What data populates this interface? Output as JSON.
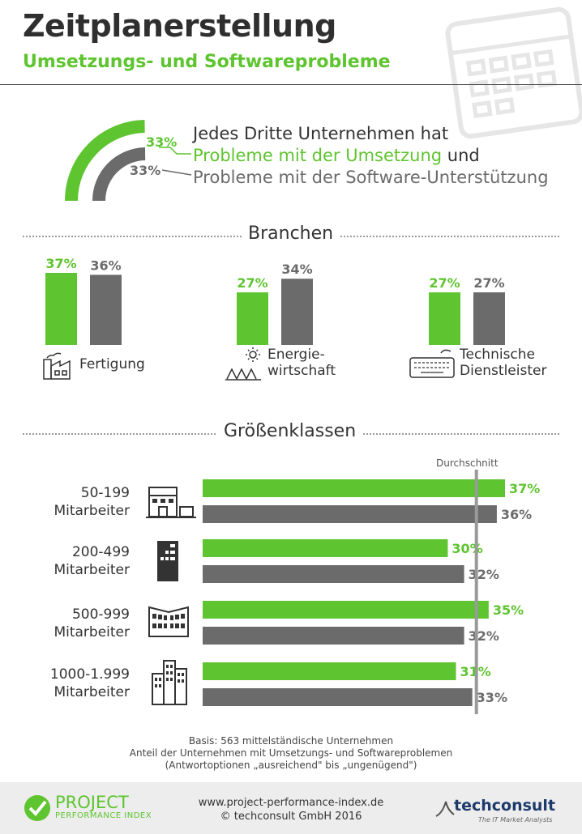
{
  "header": {
    "title": "Zeitplanerstellung",
    "subtitle": "Umsetzungs- und Softwareprobleme"
  },
  "intro": {
    "pct_green": "33%",
    "pct_grey": "33%",
    "line1": "Jedes Dritte Unternehmen hat",
    "line2_green": "Probleme mit der Umsetzung",
    "line2_tail": "und",
    "line3": "Probleme mit der Software-Unterstützung"
  },
  "branchen": {
    "heading": "Branchen",
    "items": [
      {
        "label_1": "Fertigung",
        "label_2": "",
        "icon": "factory-icon"
      },
      {
        "label_1": "Energie-",
        "label_2": "wirtschaft",
        "icon": "solar-panel-icon"
      },
      {
        "label_1": "Technische",
        "label_2": "Dienstleister",
        "icon": "keyboard-icon"
      }
    ]
  },
  "groessen": {
    "heading": "Größenklassen",
    "average_label": "Durchschnitt",
    "items": [
      {
        "label_1": "50-199",
        "label_2": "Mitarbeiter",
        "icon": "small-building-icon"
      },
      {
        "label_1": "200-499",
        "label_2": "Mitarbeiter",
        "icon": "office-tower-icon"
      },
      {
        "label_1": "500-999",
        "label_2": "Mitarbeiter",
        "icon": "office-block-icon"
      },
      {
        "label_1": "1000-1.999",
        "label_2": "Mitarbeiter",
        "icon": "skyscraper-icon"
      }
    ]
  },
  "notes": {
    "line1": "Basis: 563 mittelständische Unternehmen",
    "line2": "Anteil der Unternehmen mit Umsetzungs- und Softwareproblemen",
    "line3": "(Antwortoptionen „ausreichend\" bis „ungenügend\")"
  },
  "footer": {
    "logo_line1": "PROJECT",
    "logo_line2": "PERFORMANCE INDEX",
    "url": "www.project-performance-index.de",
    "copyright": "© techconsult GmbH 2016",
    "brand": "techconsult",
    "brand_tagline": "The IT Market Analysts"
  },
  "colors": {
    "green": "#5ec42f",
    "grey": "#6b6b6b"
  },
  "chart_data": [
    {
      "type": "pie",
      "values": [
        33,
        33
      ]
    },
    {
      "type": "bar",
      "categories": [
        "Fertigung",
        "Energiewirtschaft",
        "Technische Dienstleister"
      ],
      "series": [
        {
          "values": [
            37,
            27,
            27
          ]
        },
        {
          "values": [
            36,
            34,
            27
          ]
        }
      ]
    },
    {
      "type": "bar",
      "orientation": "horizontal",
      "categories": [
        "50-199 Mitarbeiter",
        "200-499 Mitarbeiter",
        "500-999 Mitarbeiter",
        "1000-1.999 Mitarbeiter"
      ],
      "series": [
        {
          "values": [
            37,
            30,
            35,
            31
          ]
        },
        {
          "values": [
            36,
            32,
            32,
            33
          ]
        }
      ],
      "average": 33.5
    }
  ]
}
